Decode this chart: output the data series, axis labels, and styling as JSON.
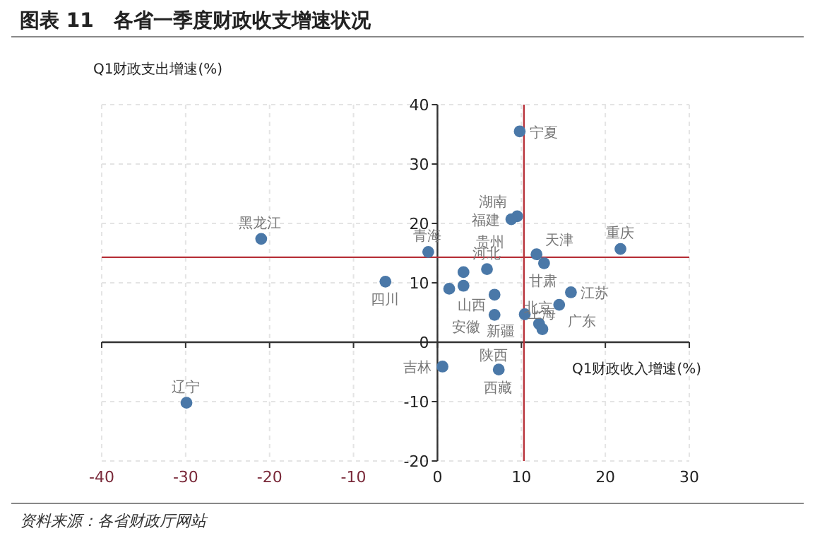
{
  "chart_data": {
    "type": "scatter",
    "title": "图表 11　各省一季度财政收支增速状况",
    "xlabel": "Q1财政收入增速(%)",
    "ylabel": "Q1财政支出增速(%)",
    "x": [
      9.8,
      9.5,
      8.8,
      21.8,
      -1.1,
      11.8,
      12.7,
      -21,
      -6.2,
      -29.9,
      3.1,
      5.9,
      1.4,
      3.1,
      6.8,
      6.8,
      10.4,
      15.9,
      14.5,
      12.1,
      12.5,
      0.6,
      7.3
    ],
    "series": [
      {
        "color": "#4a78a8",
        "values": [
          35.5,
          21.2,
          20.7,
          15.7,
          15.2,
          14.8,
          13.3,
          17.4,
          10.2,
          -10.2,
          11.8,
          12.3,
          9.0,
          9.5,
          8.0,
          4.6,
          4.7,
          8.4,
          6.3,
          3.1,
          2.2,
          -4.1,
          -4.6
        ]
      }
    ],
    "marker": "circle",
    "xlim": [
      -40,
      30
    ],
    "ylim": [
      -20,
      40
    ],
    "xticks": [
      -40,
      -30,
      -20,
      -10,
      0,
      10,
      20,
      30
    ],
    "yticks": [
      -20,
      -10,
      0,
      10,
      20,
      30,
      40
    ],
    "grid": true,
    "ref_lines": [
      {
        "axis": "x",
        "value": 10.3,
        "color": "#b8333b"
      },
      {
        "axis": "y",
        "value": 14.3,
        "color": "#b8333b"
      }
    ],
    "annotations": [
      {
        "text": "宁夏",
        "x": 9.8,
        "y": 35.5
      },
      {
        "text": "湖南",
        "x": 9.5,
        "y": 21.2
      },
      {
        "text": "福建",
        "x": 8.8,
        "y": 20.7
      },
      {
        "text": "重庆",
        "x": 21.8,
        "y": 15.7
      },
      {
        "text": "青海",
        "x": -1.1,
        "y": 15.2
      },
      {
        "text": "天津",
        "x": 11.8,
        "y": 14.8
      },
      {
        "text": "甘肃",
        "x": 12.7,
        "y": 13.3
      },
      {
        "text": "黑龙江",
        "x": -21,
        "y": 17.4
      },
      {
        "text": "四川",
        "x": -6.2,
        "y": 10.2
      },
      {
        "text": "辽宁",
        "x": -29.9,
        "y": -10.2
      },
      {
        "text": "贵州",
        "x": 3.1,
        "y": 11.8
      },
      {
        "text": "河北",
        "x": 5.9,
        "y": 12.3
      },
      {
        "text": "山西",
        "x": 1.4,
        "y": 9.0
      },
      {
        "text": "安徽",
        "x": 6.8,
        "y": 8.0
      },
      {
        "text": "陕西",
        "x": 6.8,
        "y": 4.6
      },
      {
        "text": "新疆",
        "x": 10.4,
        "y": 4.7
      },
      {
        "text": "江苏",
        "x": 15.9,
        "y": 8.4
      },
      {
        "text": "广东",
        "x": 14.5,
        "y": 6.3
      },
      {
        "text": "北京",
        "x": 12.1,
        "y": 3.1
      },
      {
        "text": "上海",
        "x": 12.5,
        "y": 2.2
      },
      {
        "text": "吉林",
        "x": 0.6,
        "y": -4.1
      },
      {
        "text": "西藏",
        "x": 7.3,
        "y": -4.6
      },
      "资料来源：各省财政厅网站"
    ]
  }
}
